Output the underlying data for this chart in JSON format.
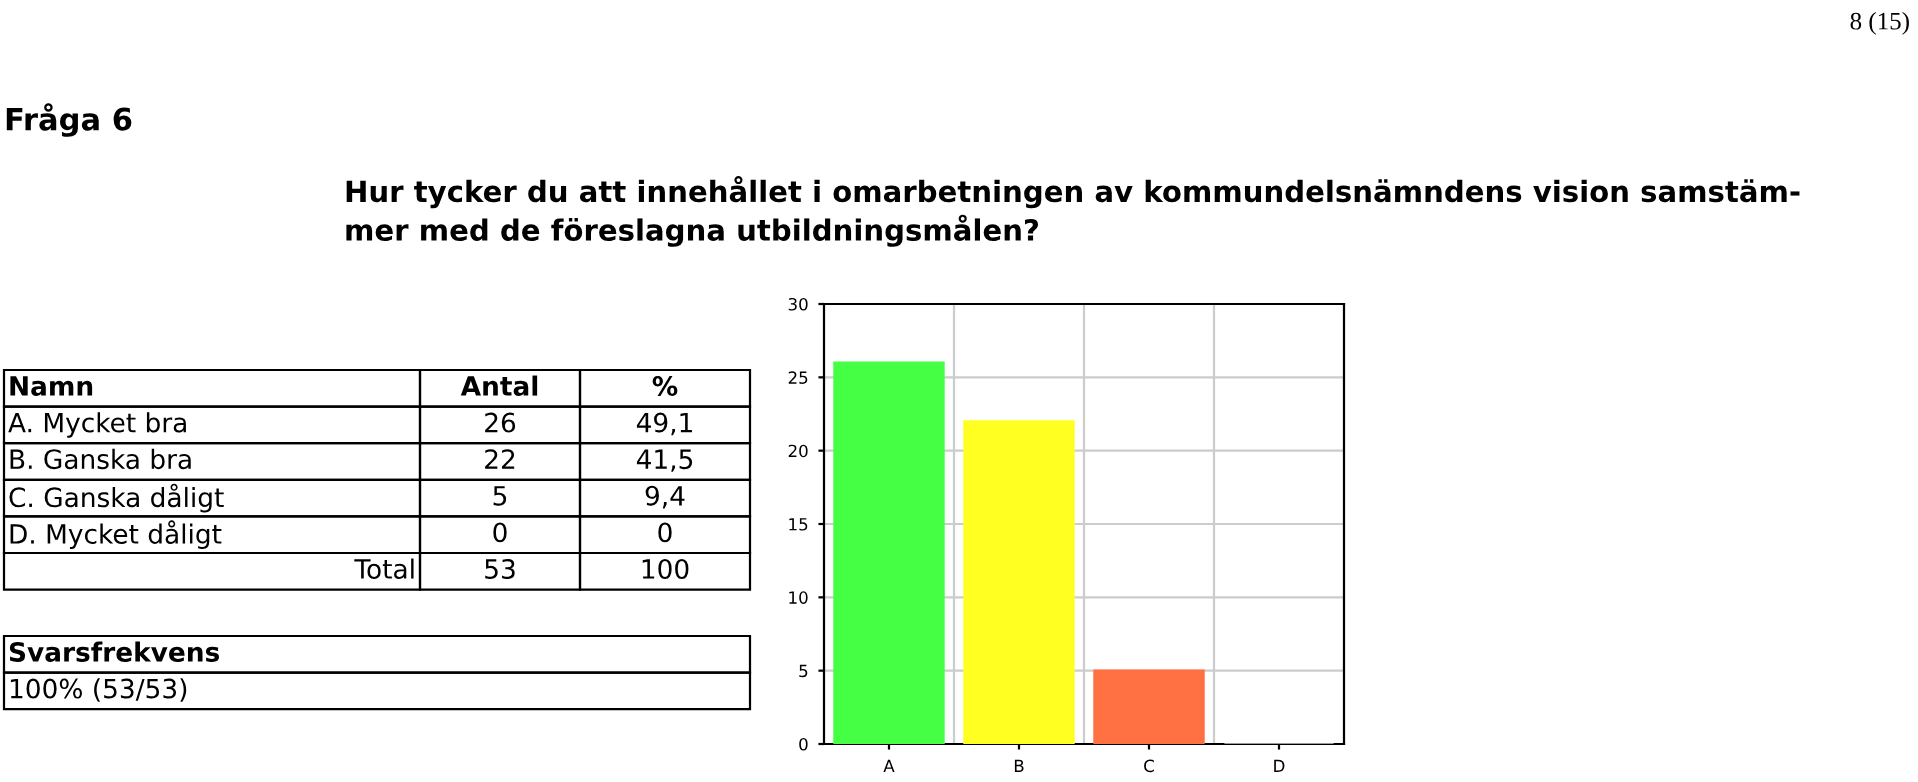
{
  "chart_data": {
    "type": "bar",
    "title": "Fråga 6",
    "subtitle": "Hur tycker du att innehållet i omarbetningen av kommundelsnämndens vision samstäm-\nmer med de föreslagna utbildningsmålen?",
    "categories": [
      "A",
      "B",
      "C",
      "D"
    ],
    "values": [
      26,
      22,
      5,
      0
    ],
    "colors": [
      "#44ff44",
      "#ffff22",
      "#ff7043",
      "#999999"
    ],
    "ylim": [
      0,
      30
    ],
    "yticks": [
      0,
      5,
      10,
      15,
      20,
      25,
      30
    ],
    "grid": true,
    "annotations": [
      "8 (15)",
      "Namn",
      "Antal",
      "%",
      "A. Mycket bra",
      "26",
      "49,1",
      "B. Ganska bra",
      "22",
      "41,5",
      "C. Ganska dåligt",
      "5",
      "9,4",
      "D. Mycket dåligt",
      "0",
      "0",
      "Total",
      "53",
      "100",
      "Svarsfrekvens",
      "100% (53/53)"
    ]
  }
}
